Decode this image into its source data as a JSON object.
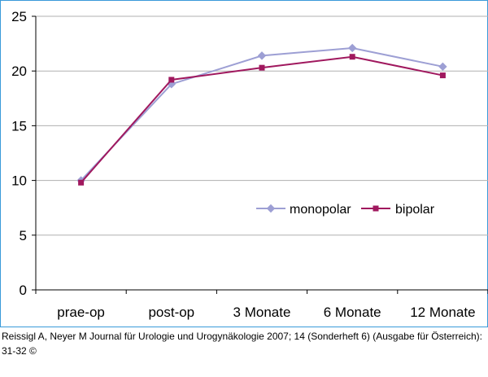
{
  "chart_data": {
    "type": "line",
    "categories": [
      "prae-op",
      "post-op",
      "3 Monate",
      "6 Monate",
      "12 Monate"
    ],
    "series": [
      {
        "name": "monopolar",
        "values": [
          10.0,
          18.8,
          21.4,
          22.1,
          20.4
        ],
        "color": "#9d9fd4",
        "marker": "diamond"
      },
      {
        "name": "bipolar",
        "values": [
          9.8,
          19.2,
          20.3,
          21.3,
          19.6
        ],
        "color": "#a0185e",
        "marker": "square"
      }
    ],
    "y_ticks": [
      "0",
      "5",
      "10",
      "15",
      "20",
      "25"
    ],
    "ylim": [
      0,
      25
    ],
    "grid": "horizontal",
    "legend_position": "lower-right inside plot",
    "title": "",
    "xlabel": "",
    "ylabel": "",
    "border_color": "#3a9ad9"
  },
  "citation": {
    "text": "Reissigl A, Neyer M Journal für Urologie und Urogynäkologie 2007; 14 (Sonderheft 6) (Ausgabe für Österreich): 31-32 ©"
  }
}
